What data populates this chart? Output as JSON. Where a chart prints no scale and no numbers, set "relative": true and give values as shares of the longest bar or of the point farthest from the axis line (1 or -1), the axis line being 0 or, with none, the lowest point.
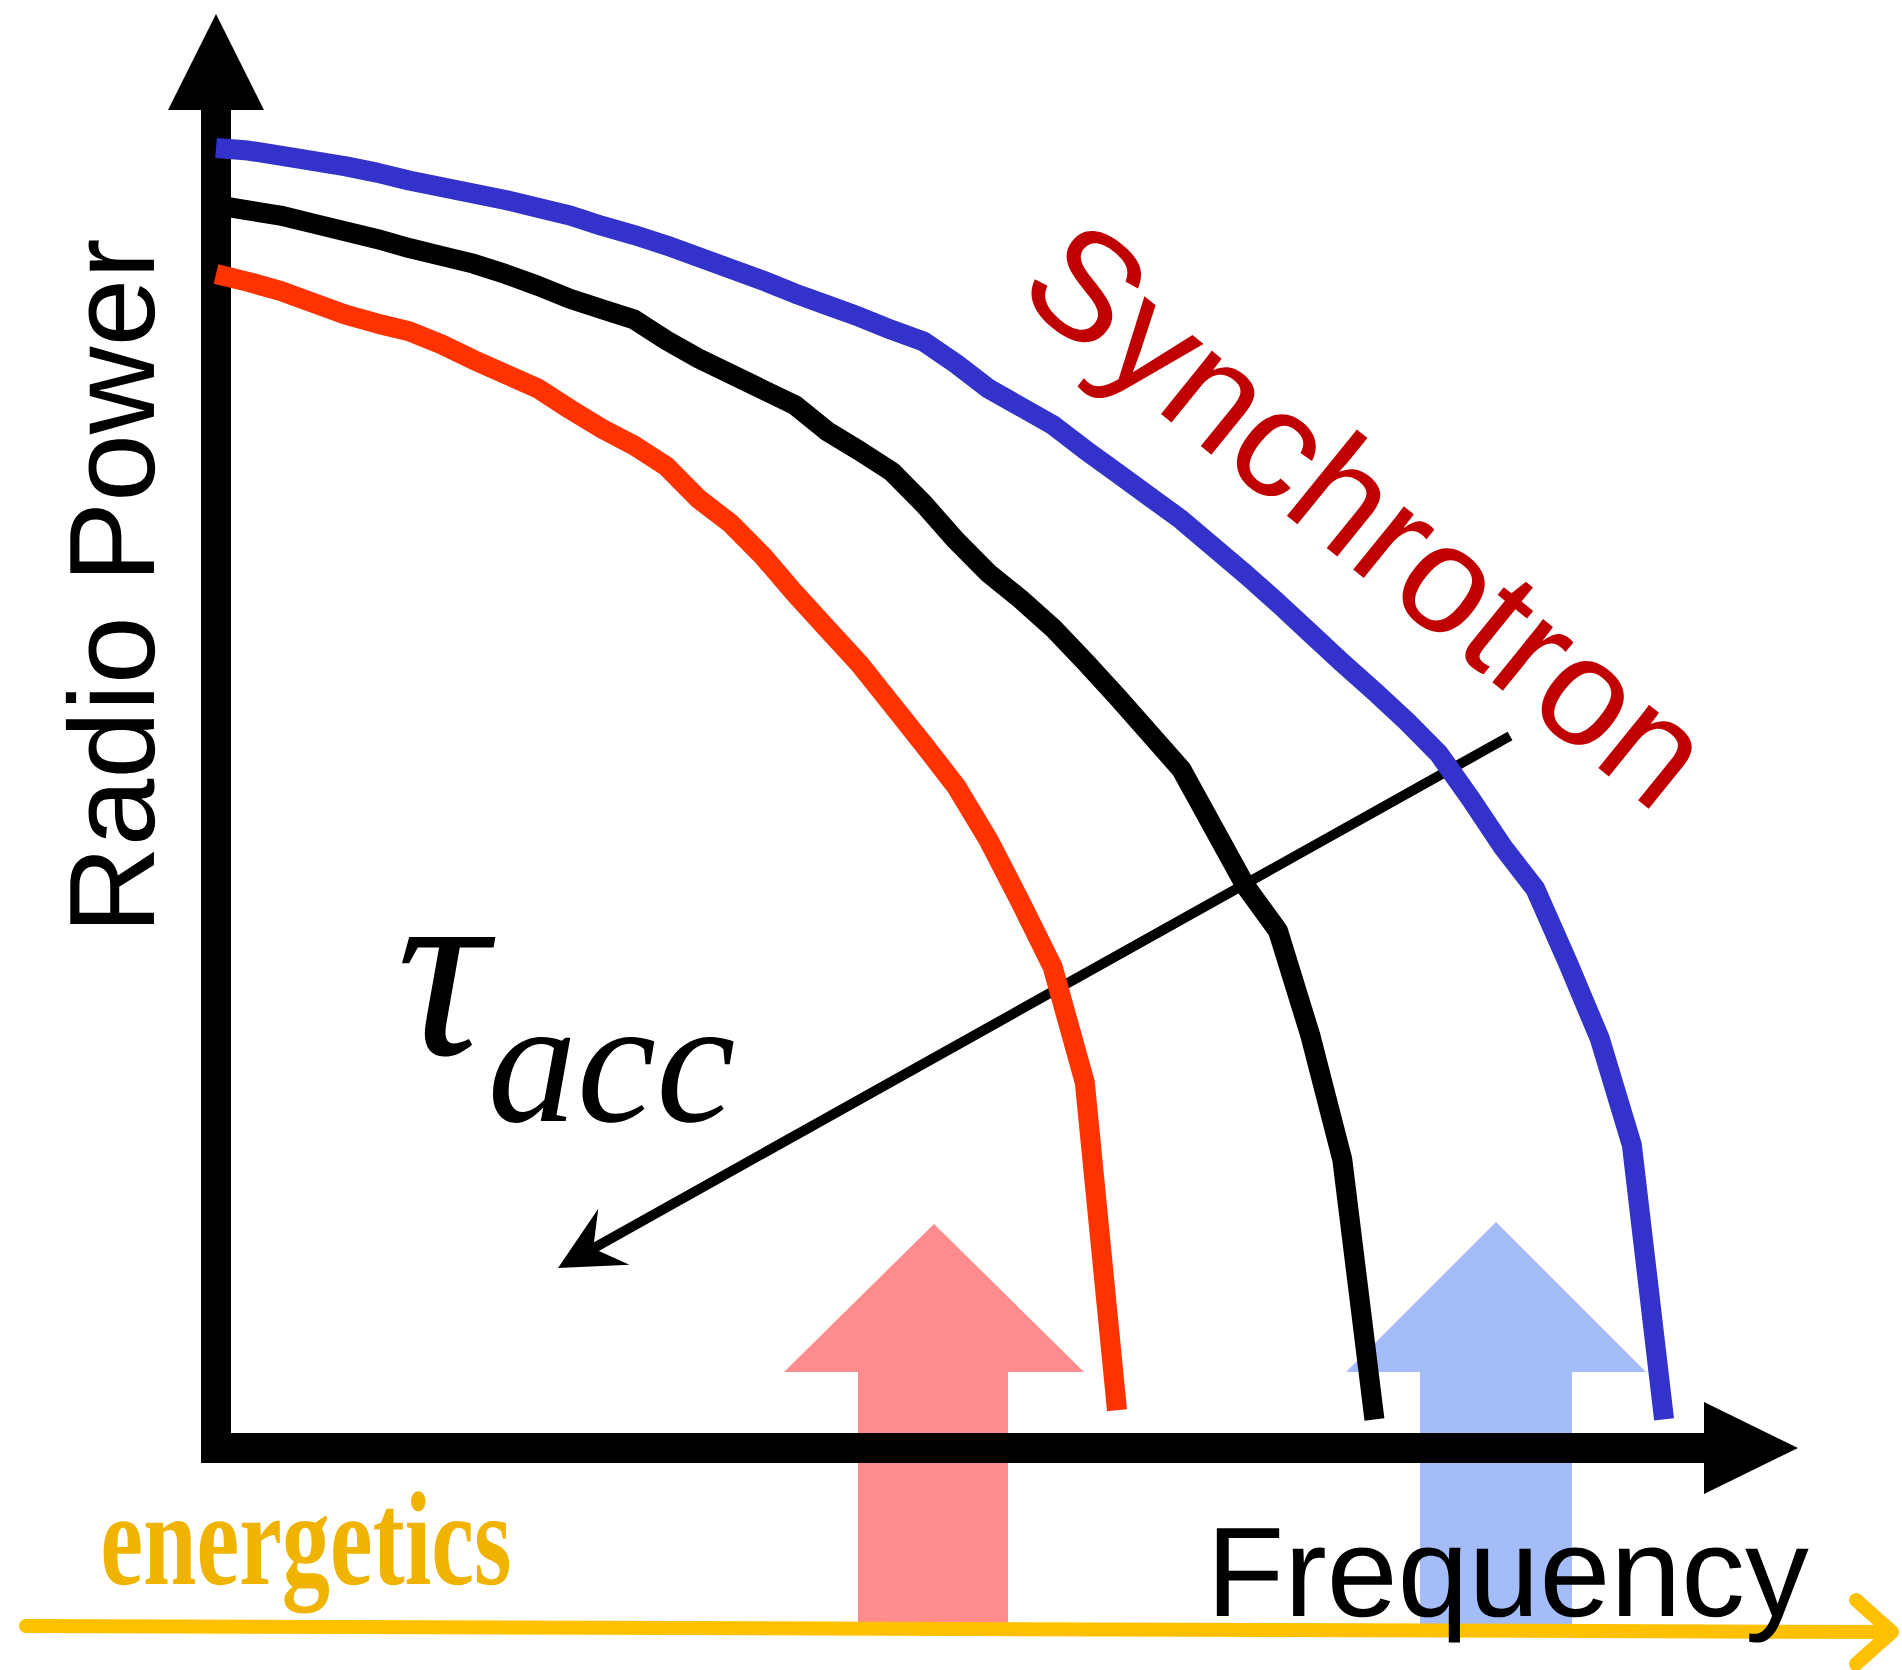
{
  "chart_data": {
    "type": "line",
    "xlabel": "Frequency",
    "ylabel": "Radio Power",
    "annotations": [
      "Synchrotron",
      "τ$_{acc}$",
      "energetics"
    ],
    "relative": true,
    "categories": [
      null,
      null,
      null,
      null,
      null,
      null,
      null,
      null,
      null,
      null,
      null,
      null,
      null,
      null,
      null,
      null,
      null,
      null,
      null,
      null,
      null,
      null,
      null,
      null,
      null,
      null,
      null,
      null,
      null,
      null,
      null,
      null,
      null,
      null,
      null,
      null,
      null,
      null,
      null,
      null,
      null,
      null,
      null,
      null,
      null,
      null
    ],
    "series": [
      {
        "color": "#ff3300",
        "values": [
          0.903,
          0.897,
          0.89,
          0.881,
          0.872,
          0.865,
          0.859,
          0.849,
          0.837,
          0.826,
          0.815,
          0.799,
          0.784,
          0.771,
          0.755,
          0.73,
          0.711,
          0.686,
          0.657,
          0.63,
          0.603,
          0.572,
          0.541,
          0.509,
          0.468,
          0.42,
          0.37,
          0.281,
          0.029,
          null,
          null,
          null,
          null,
          null,
          null,
          null,
          null,
          null,
          null,
          null,
          null,
          null,
          null,
          null,
          null,
          null
        ]
      },
      {
        "color": "#000000",
        "values": [
          0.956,
          0.952,
          0.948,
          0.942,
          0.936,
          0.93,
          0.923,
          0.917,
          0.911,
          0.903,
          0.894,
          0.884,
          0.876,
          0.868,
          0.852,
          0.838,
          0.826,
          0.814,
          0.802,
          0.782,
          0.767,
          0.751,
          0.726,
          0.698,
          0.673,
          0.653,
          0.631,
          0.605,
          0.578,
          0.55,
          0.522,
          0.477,
          0.432,
          0.398,
          0.318,
          0.222,
          0.022,
          null,
          null,
          null,
          null,
          null,
          null,
          null,
          null,
          null
        ]
      },
      {
        "color": "#3333cc",
        "values": [
          1.0,
          0.998,
          0.994,
          0.99,
          0.986,
          0.981,
          0.975,
          0.97,
          0.965,
          0.96,
          0.954,
          0.948,
          0.94,
          0.933,
          0.925,
          0.916,
          0.907,
          0.898,
          0.888,
          0.879,
          0.87,
          0.86,
          0.851,
          0.834,
          0.815,
          0.801,
          0.787,
          0.768,
          0.75,
          0.732,
          0.714,
          0.693,
          0.672,
          0.65,
          0.627,
          0.604,
          0.582,
          0.559,
          0.534,
          0.499,
          0.462,
          0.43,
          0.374,
          0.315,
          0.233,
          0.022
        ]
      }
    ]
  }
}
